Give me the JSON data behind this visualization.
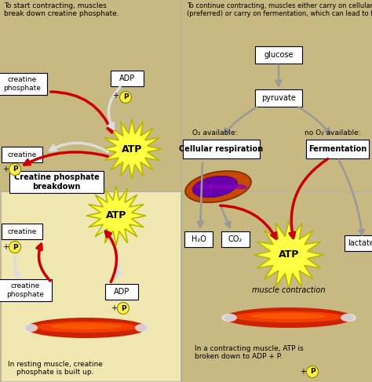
{
  "bg_tan": "#c8b882",
  "bg_yellow": "#f0e8b0",
  "title_top_left": "To start contracting, muscles\nbreak down creatine phosphate.",
  "title_top_right": "To continue contracting, muscles either carry on cellular respiration\n(preferred) or carry on fermentation, which can lead to fatigue.",
  "atp_color": "#ffff44",
  "atp_edge": "#b8b800",
  "arrow_red": "#cc0000",
  "arrow_gray": "#999999",
  "arrow_white": "#dddddd",
  "caption_bl": "In resting muscle, creatine\nphosphate is built up.",
  "caption_br": "In a contracting muscle, ATP is\nbroken down to ADP + P.",
  "label_cpb": "Creatine phosphate\nbreakdown",
  "label_cr": "Cellular respiration",
  "label_ferm": "Fermentation",
  "label_mc": "muscle contraction"
}
